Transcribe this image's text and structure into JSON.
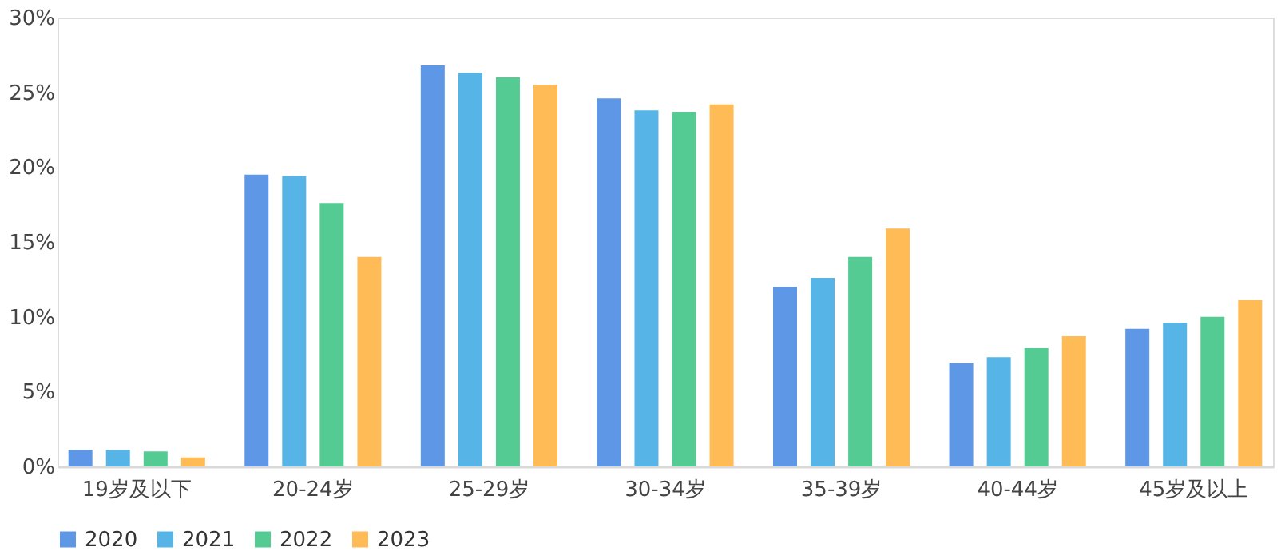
{
  "chart_data": {
    "type": "bar",
    "categories": [
      "19岁及以下",
      "20-24岁",
      "25-29岁",
      "30-34岁",
      "35-39岁",
      "40-44岁",
      "45岁及以上"
    ],
    "series": [
      {
        "name": "2020",
        "color": "#5e97e6",
        "values": [
          1.1,
          19.5,
          26.8,
          24.6,
          12.0,
          6.9,
          9.2
        ]
      },
      {
        "name": "2021",
        "color": "#56b5e6",
        "values": [
          1.1,
          19.4,
          26.3,
          23.8,
          12.6,
          7.3,
          9.6
        ]
      },
      {
        "name": "2022",
        "color": "#53cb92",
        "values": [
          1.0,
          17.6,
          26.0,
          23.7,
          14.0,
          7.9,
          10.0
        ]
      },
      {
        "name": "2023",
        "color": "#ffbb55",
        "values": [
          0.6,
          14.0,
          25.5,
          24.2,
          15.9,
          8.7,
          11.1
        ]
      }
    ],
    "ylim": [
      0,
      30
    ],
    "yticks": [
      {
        "value": 0,
        "label": "0%"
      },
      {
        "value": 5,
        "label": "5%"
      },
      {
        "value": 10,
        "label": "10%"
      },
      {
        "value": 15,
        "label": "15%"
      },
      {
        "value": 20,
        "label": "20%"
      },
      {
        "value": 25,
        "label": "25%"
      },
      {
        "value": 30,
        "label": "30%"
      }
    ],
    "grid": false,
    "legend": "bottom"
  }
}
